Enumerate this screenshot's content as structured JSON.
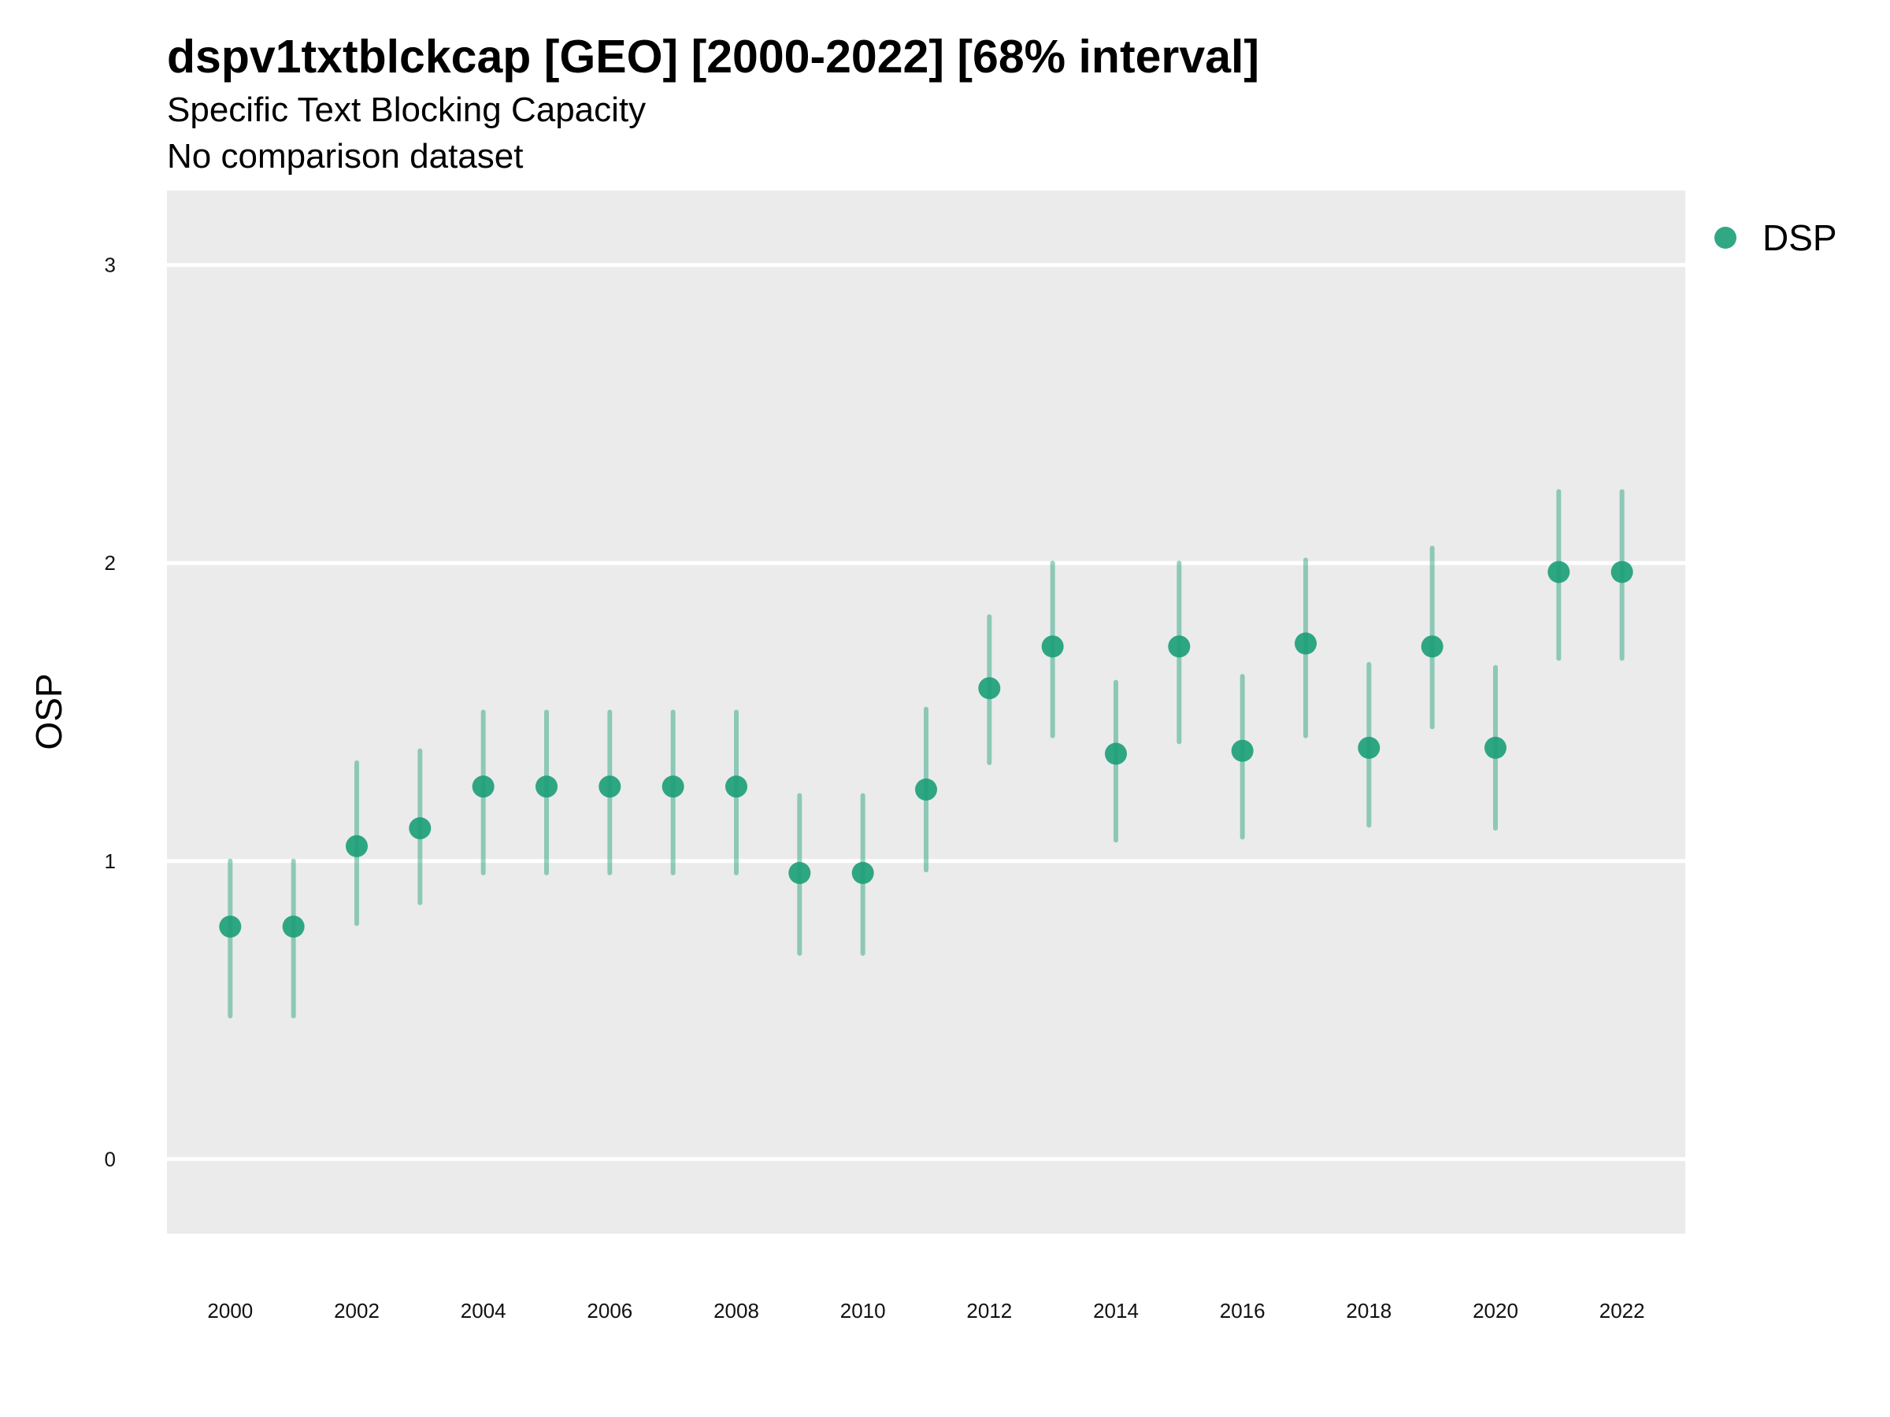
{
  "chart_data": {
    "type": "scatter",
    "title": "dspv1txtblckcap [GEO] [2000-2022] [68% interval]",
    "subtitle": "Specific Text Blocking Capacity",
    "caption_line": "No comparison dataset",
    "xlabel": "",
    "ylabel": "OSP",
    "xlim": [
      1999,
      2023
    ],
    "ylim": [
      -0.25,
      3.25
    ],
    "x_ticks": [
      2000,
      2002,
      2004,
      2006,
      2008,
      2010,
      2012,
      2014,
      2016,
      2018,
      2020,
      2022
    ],
    "y_ticks": [
      0,
      1,
      2,
      3
    ],
    "grid": true,
    "legend_position": "right",
    "series": [
      {
        "name": "DSP",
        "color": "#1b9e77",
        "x": [
          2000,
          2001,
          2002,
          2003,
          2004,
          2005,
          2006,
          2007,
          2008,
          2009,
          2010,
          2011,
          2012,
          2013,
          2014,
          2015,
          2016,
          2017,
          2018,
          2019,
          2020,
          2021,
          2022
        ],
        "y": [
          0.78,
          0.78,
          1.05,
          1.11,
          1.25,
          1.25,
          1.25,
          1.25,
          1.25,
          0.96,
          0.96,
          1.24,
          1.58,
          1.72,
          1.36,
          1.72,
          1.37,
          1.73,
          1.38,
          1.72,
          1.38,
          1.97,
          1.97
        ],
        "lower": [
          0.48,
          0.48,
          0.79,
          0.86,
          0.96,
          0.96,
          0.96,
          0.96,
          0.96,
          0.69,
          0.69,
          0.97,
          1.33,
          1.42,
          1.07,
          1.4,
          1.08,
          1.42,
          1.12,
          1.45,
          1.11,
          1.68,
          1.68
        ],
        "upper": [
          1.0,
          1.0,
          1.33,
          1.37,
          1.5,
          1.5,
          1.5,
          1.5,
          1.5,
          1.22,
          1.22,
          1.51,
          1.82,
          2.0,
          1.6,
          2.0,
          1.62,
          2.01,
          1.66,
          2.05,
          1.65,
          2.24,
          2.24
        ]
      }
    ]
  }
}
